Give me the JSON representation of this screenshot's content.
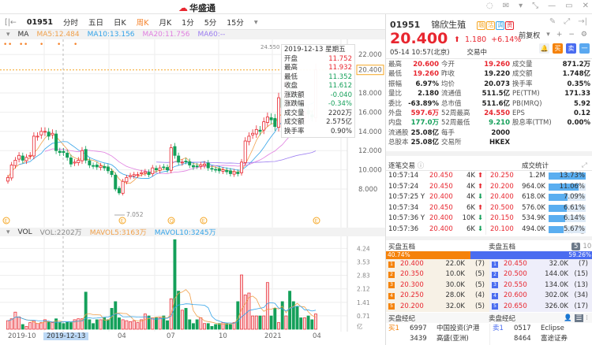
{
  "app": {
    "logo_text": "华盛通",
    "window_icons": [
      "headset-icon",
      "mail-icon",
      "shirt-icon",
      "shrink-icon",
      "minimize-icon",
      "maximize-icon",
      "close-icon"
    ]
  },
  "toolbar": {
    "code": "01951",
    "tabs": [
      "分时",
      "五日",
      "日K",
      "周K",
      "月K",
      "1分",
      "5分",
      "15分"
    ],
    "active_tab": "周K"
  },
  "ma": {
    "label": "MA",
    "ma5": "MA5:12.484",
    "ma10": "MA10:13.156",
    "ma20": "MA20:11.756",
    "ma60": "MA60:--",
    "adjust": "前复权",
    "colors": {
      "ma5": "#f0a04b",
      "ma10": "#33a3e8",
      "ma20": "#e07ee0",
      "ma60": "#9b7cf0"
    }
  },
  "chart": {
    "y_ticks": [
      "24.000",
      "22.000",
      "20.400",
      "18.000",
      "16.000",
      "14.000",
      "12.000",
      "10.000",
      "8.000"
    ],
    "y_values": [
      24,
      22,
      20.4,
      18,
      16,
      14,
      12,
      10,
      8
    ],
    "current_price": 20.4,
    "high_label": "24.550",
    "low_label": "7.052",
    "event_markers": [
      "E",
      "E",
      "Q",
      "E",
      "E"
    ],
    "closes": [
      9.2,
      10.5,
      11,
      11.5,
      11,
      11.3,
      11.5,
      13.5,
      13.5,
      14,
      14,
      13.5,
      13.8,
      12,
      11.8,
      11.8,
      11.3,
      10.6,
      10.8,
      11,
      12,
      11,
      10.5,
      10.4,
      10.3,
      10.4,
      10.2,
      9.9,
      9.5,
      8,
      7.6,
      8.8,
      9.2,
      9.4,
      9.5,
      9.5,
      9.7,
      9.8,
      9.5,
      10.2,
      10,
      10.2,
      10.3,
      10,
      12.3,
      11.5,
      10.8,
      10.8,
      10.9,
      10.5,
      10.3,
      10.4,
      10.5,
      10.6,
      10.2,
      10.1,
      10,
      9.9,
      10,
      9.8,
      9.6,
      9.8,
      9.6,
      10.8,
      13,
      13.5,
      13.8,
      14.2,
      14,
      15,
      15.5,
      15.2,
      14.5,
      17.5,
      16.5,
      19.5,
      18,
      17.5,
      17,
      15.5,
      16,
      15.8,
      15.5,
      20.4
    ],
    "volumes_yi": [
      0.45,
      0.55,
      0.9,
      0.65,
      0.25,
      0.15,
      0.35,
      0.45,
      0.3,
      0.35,
      0.5,
      0.4,
      0.35,
      0.55,
      0.35,
      0.3,
      0.4,
      0.35,
      0.5,
      0.55,
      0.55,
      1.95,
      0.5,
      0.3,
      0.5,
      0.5,
      0.6,
      0.5,
      1.1,
      1.45,
      0.6,
      0.5,
      0.45,
      0.4,
      0.45,
      0.35,
      0.5,
      0.8,
      0.7,
      0.6,
      0.6,
      0.6,
      0.7,
      0.45,
      1.6,
      4.7,
      2.0,
      1.0,
      1.1,
      0.5,
      0.3,
      0.5,
      0.6,
      0.3,
      0.3,
      0.15,
      0.25,
      0.3,
      0.35,
      0.3,
      0.25,
      0.35,
      1.45,
      2.85,
      1.8,
      1.9,
      0.7,
      0.7,
      0.7,
      0.7,
      2.45,
      0.7,
      1.1,
      0.35,
      1.45,
      0.7,
      2.0,
      1.45,
      1.2,
      0.6,
      0.6,
      0.7,
      0.5,
      0.8
    ],
    "up_color": "#e8262f",
    "down_color": "#14a05a"
  },
  "tooltip": {
    "date": "2019-12-13 星期五",
    "rows": [
      {
        "k": "开盘",
        "v": "11.752",
        "c": "red"
      },
      {
        "k": "最高",
        "v": "11.932",
        "c": "red"
      },
      {
        "k": "最低",
        "v": "11.352",
        "c": "green"
      },
      {
        "k": "收盘",
        "v": "11.612",
        "c": "green"
      },
      {
        "k": "涨跌额",
        "v": "-0.040",
        "c": "green"
      },
      {
        "k": "涨跌幅",
        "v": "-0.34%",
        "c": "green"
      },
      {
        "k": "成交量",
        "v": "2202万",
        "c": ""
      },
      {
        "k": "成交额",
        "v": "2.575亿",
        "c": ""
      },
      {
        "k": "换手率",
        "v": "0.90%",
        "c": ""
      }
    ]
  },
  "vol": {
    "label": "VOL",
    "vol": "VOL:2202万",
    "mavol5": "MAVOL5:3163万",
    "mavol10": "MAVOL10:3245万",
    "y_ticks": [
      "4.24",
      "3.53",
      "2.83",
      "2.12",
      "1.41",
      "0.71",
      "亿"
    ]
  },
  "date_axis": [
    "2019-10",
    "2019-12-13",
    "04",
    "07",
    "10",
    "2021",
    "04"
  ],
  "stock": {
    "code": "01951",
    "name": "锦欣生殖",
    "tags": [
      "融",
      "沽",
      "调",
      "资"
    ],
    "price": "20.400",
    "change": "1.180",
    "change_pct": "+6.14%",
    "time": "05-14 10:57(北京)",
    "status": "交易中",
    "buttons": [
      "买",
      "卖",
      "一"
    ]
  },
  "stats": [
    [
      {
        "k": "最高",
        "v": "20.600",
        "c": "red"
      },
      {
        "k": "今开",
        "v": "19.260",
        "c": "red"
      },
      {
        "k": "成交量",
        "v": "871.2万",
        "c": ""
      }
    ],
    [
      {
        "k": "最低",
        "v": "19.260",
        "c": "red"
      },
      {
        "k": "昨收",
        "v": "19.220",
        "c": ""
      },
      {
        "k": "成交额",
        "v": "1.748亿",
        "c": ""
      }
    ],
    [
      {
        "k": "振幅",
        "v": "6.97%",
        "c": ""
      },
      {
        "k": "均价",
        "v": "20.073",
        "c": ""
      },
      {
        "k": "换手率",
        "v": "0.35%",
        "c": ""
      }
    ],
    [
      {
        "k": "量比",
        "v": "2.180",
        "c": ""
      },
      {
        "k": "流通值",
        "v": "511.5亿",
        "c": ""
      },
      {
        "k": "PE(TTM)",
        "v": "171.33",
        "c": ""
      }
    ],
    [
      {
        "k": "委比",
        "v": "-63.89%",
        "c": ""
      },
      {
        "k": "总市值",
        "v": "511.6亿",
        "c": ""
      },
      {
        "k": "PB(MRQ)",
        "v": "5.92",
        "c": ""
      }
    ],
    [
      {
        "k": "外盘",
        "v": "597.6万",
        "c": "red"
      },
      {
        "k": "52周最高",
        "v": "24.550",
        "c": "red"
      },
      {
        "k": "EPS",
        "v": "0.12",
        "c": ""
      }
    ],
    [
      {
        "k": "内盘",
        "v": "177.0万",
        "c": "green"
      },
      {
        "k": "52周最低",
        "v": "9.210",
        "c": "green"
      },
      {
        "k": "股息率(TTM)",
        "v": "0.00%",
        "c": ""
      }
    ],
    [
      {
        "k": "流通股",
        "v": "25.08亿",
        "c": ""
      },
      {
        "k": "每手",
        "v": "2000",
        "c": ""
      },
      {
        "k": "",
        "v": "",
        "c": ""
      }
    ],
    [
      {
        "k": "总股本",
        "v": "25.08亿",
        "c": ""
      },
      {
        "k": "交易所",
        "v": "HKEX",
        "c": ""
      },
      {
        "k": "",
        "v": "",
        "c": ""
      }
    ]
  ],
  "ticks": {
    "title": "逐笔交易",
    "stat_title": "成交统计",
    "rows": [
      {
        "t": "10:57:14",
        "p": "20.450",
        "q": "4K",
        "d": "up"
      },
      {
        "t": "10:57:24",
        "p": "20.450",
        "q": "4K",
        "d": "up"
      },
      {
        "t": "10:57:25 Y",
        "p": "20.400",
        "q": "4K",
        "d": "down"
      },
      {
        "t": "10:57:34",
        "p": "20.450",
        "q": "6K",
        "d": "up"
      },
      {
        "t": "10:57:36 Y",
        "p": "20.400",
        "q": "10K",
        "d": "down"
      },
      {
        "t": "10:57:36",
        "p": "20.400",
        "q": "6K",
        "d": "down"
      }
    ],
    "stats": [
      {
        "p": "20.250",
        "v": "1.2M",
        "pct": "13.73%",
        "f": 13.73
      },
      {
        "p": "20.200",
        "v": "964.0K",
        "pct": "11.06%",
        "f": 11.06
      },
      {
        "p": "20.400",
        "v": "618.0K",
        "pct": "7.09%",
        "f": 7.09
      },
      {
        "p": "20.500",
        "v": "576.0K",
        "pct": "6.61%",
        "f": 6.61
      },
      {
        "p": "20.150",
        "v": "534.9K",
        "pct": "6.14%",
        "f": 6.14
      },
      {
        "p": "20.100",
        "v": "494.0K",
        "pct": "5.67%",
        "f": 5.67
      }
    ]
  },
  "orderbook": {
    "bid_title": "买盘五档",
    "ask_title": "卖盘五档",
    "levels_options": [
      "5",
      "10"
    ],
    "bid_pct": "40.74%",
    "ask_pct": "59.26%",
    "bid_ratio": 40.74,
    "bids": [
      {
        "n": "1",
        "p": "20.400",
        "q": "22.0K",
        "c": "(7)"
      },
      {
        "n": "2",
        "p": "20.350",
        "q": "10.0K",
        "c": "(5)"
      },
      {
        "n": "3",
        "p": "20.300",
        "q": "30.0K",
        "c": "(5)"
      },
      {
        "n": "4",
        "p": "20.250",
        "q": "28.0K",
        "c": "(4)"
      },
      {
        "n": "5",
        "p": "20.200",
        "q": "32.0K",
        "c": "(5)"
      }
    ],
    "asks": [
      {
        "n": "1",
        "p": "20.450",
        "q": "32.0K",
        "c": "(7)"
      },
      {
        "n": "2",
        "p": "20.500",
        "q": "144.0K",
        "c": "(15)"
      },
      {
        "n": "3",
        "p": "20.550",
        "q": "134.0K",
        "c": "(13)"
      },
      {
        "n": "4",
        "p": "20.600",
        "q": "302.0K",
        "c": "(34)"
      },
      {
        "n": "5",
        "p": "20.650",
        "q": "326.0K",
        "c": "(17)"
      }
    ]
  },
  "brokers": {
    "bid_title": "买盘经纪",
    "ask_title": "卖盘经纪",
    "bid": [
      {
        "lvl": "买1",
        "id": "6997",
        "name": "中国投资(沪港"
      },
      {
        "lvl": "",
        "id": "3439",
        "name": "高盛(亚洲)"
      }
    ],
    "ask": [
      {
        "lvl": "卖1",
        "id": "0517",
        "name": "Eclipse"
      },
      {
        "lvl": "",
        "id": "8464",
        "name": "富途证券"
      }
    ]
  }
}
